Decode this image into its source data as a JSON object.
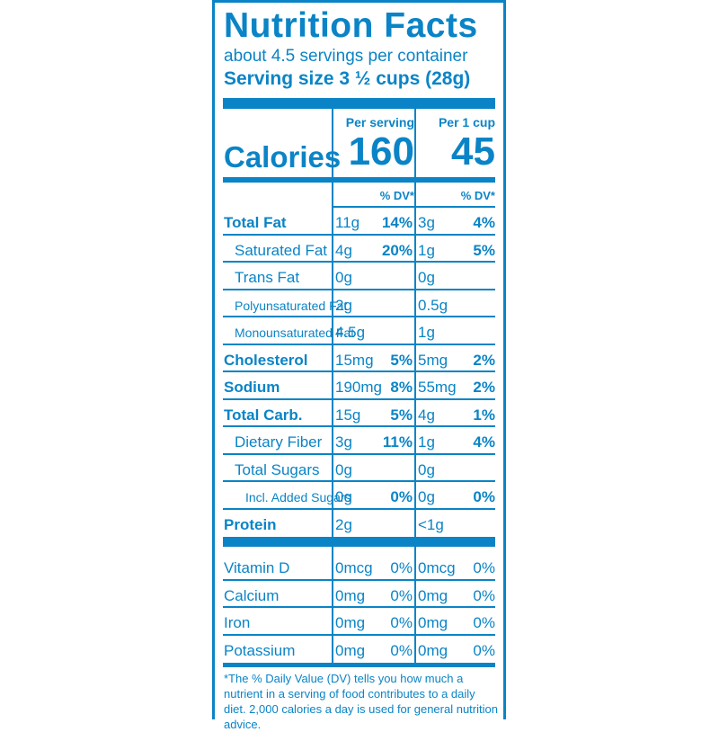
{
  "title": "Nutrition Facts",
  "servings": "about 4.5 servings per container",
  "serving_size": "Serving size  3 ½ cups (28g)",
  "columns": {
    "per_serving": "Per serving",
    "per_cup": "Per 1 cup"
  },
  "calories": {
    "label": "Calories",
    "per_serving": "160",
    "per_cup": "45"
  },
  "dv_header": "% DV*",
  "nutrients": [
    {
      "name": "Total Fat",
      "style": "bold",
      "s_amt": "11g",
      "s_dv": "14%",
      "c_amt": "3g",
      "c_dv": "4%"
    },
    {
      "name": "Saturated Fat",
      "style": "i1",
      "s_amt": "4g",
      "s_dv": "20%",
      "c_amt": "1g",
      "c_dv": "5%"
    },
    {
      "name": "Trans Fat",
      "style": "i1",
      "s_amt": "0g",
      "s_dv": "",
      "c_amt": "0g",
      "c_dv": ""
    },
    {
      "name": "Polyunsaturated Fat",
      "style": "i1s",
      "s_amt": "2g",
      "s_dv": "",
      "c_amt": "0.5g",
      "c_dv": ""
    },
    {
      "name": "Monounsaturated Fat",
      "style": "i1s",
      "s_amt": "4.5g",
      "s_dv": "",
      "c_amt": "1g",
      "c_dv": ""
    },
    {
      "name": "Cholesterol",
      "style": "bold",
      "s_amt": "15mg",
      "s_dv": "5%",
      "c_amt": "5mg",
      "c_dv": "2%"
    },
    {
      "name": "Sodium",
      "style": "bold",
      "s_amt": "190mg",
      "s_dv": "8%",
      "c_amt": "55mg",
      "c_dv": "2%"
    },
    {
      "name": "Total Carb.",
      "style": "bold",
      "s_amt": "15g",
      "s_dv": "5%",
      "c_amt": "4g",
      "c_dv": "1%"
    },
    {
      "name": "Dietary Fiber",
      "style": "i1",
      "s_amt": "3g",
      "s_dv": "11%",
      "c_amt": "1g",
      "c_dv": "4%"
    },
    {
      "name": "Total Sugars",
      "style": "i1",
      "s_amt": "0g",
      "s_dv": "",
      "c_amt": "0g",
      "c_dv": ""
    },
    {
      "name": "Incl. Added Sugars",
      "style": "i2s",
      "s_amt": "0g",
      "s_dv": "0%",
      "c_amt": "0g",
      "c_dv": "0%"
    },
    {
      "name": "Protein",
      "style": "bold",
      "s_amt": "2g",
      "s_dv": "",
      "c_amt": "<1g",
      "c_dv": ""
    }
  ],
  "vitamins": [
    {
      "name": "Vitamin D",
      "s_amt": "0mcg",
      "s_dv": "0%",
      "c_amt": "0mcg",
      "c_dv": "0%"
    },
    {
      "name": "Calcium",
      "s_amt": "0mg",
      "s_dv": "0%",
      "c_amt": "0mg",
      "c_dv": "0%"
    },
    {
      "name": "Iron",
      "s_amt": "0mg",
      "s_dv": "0%",
      "c_amt": "0mg",
      "c_dv": "0%"
    },
    {
      "name": "Potassium",
      "s_amt": "0mg",
      "s_dv": "0%",
      "c_amt": "0mg",
      "c_dv": "0%"
    }
  ],
  "footnote": "*The % Daily Value (DV) tells you how much a nutrient in a serving of food contributes to a daily diet. 2,000 calories a day is used for general nutrition advice.",
  "colors": {
    "ink": "#0a84c6",
    "background": "#ffffff"
  }
}
